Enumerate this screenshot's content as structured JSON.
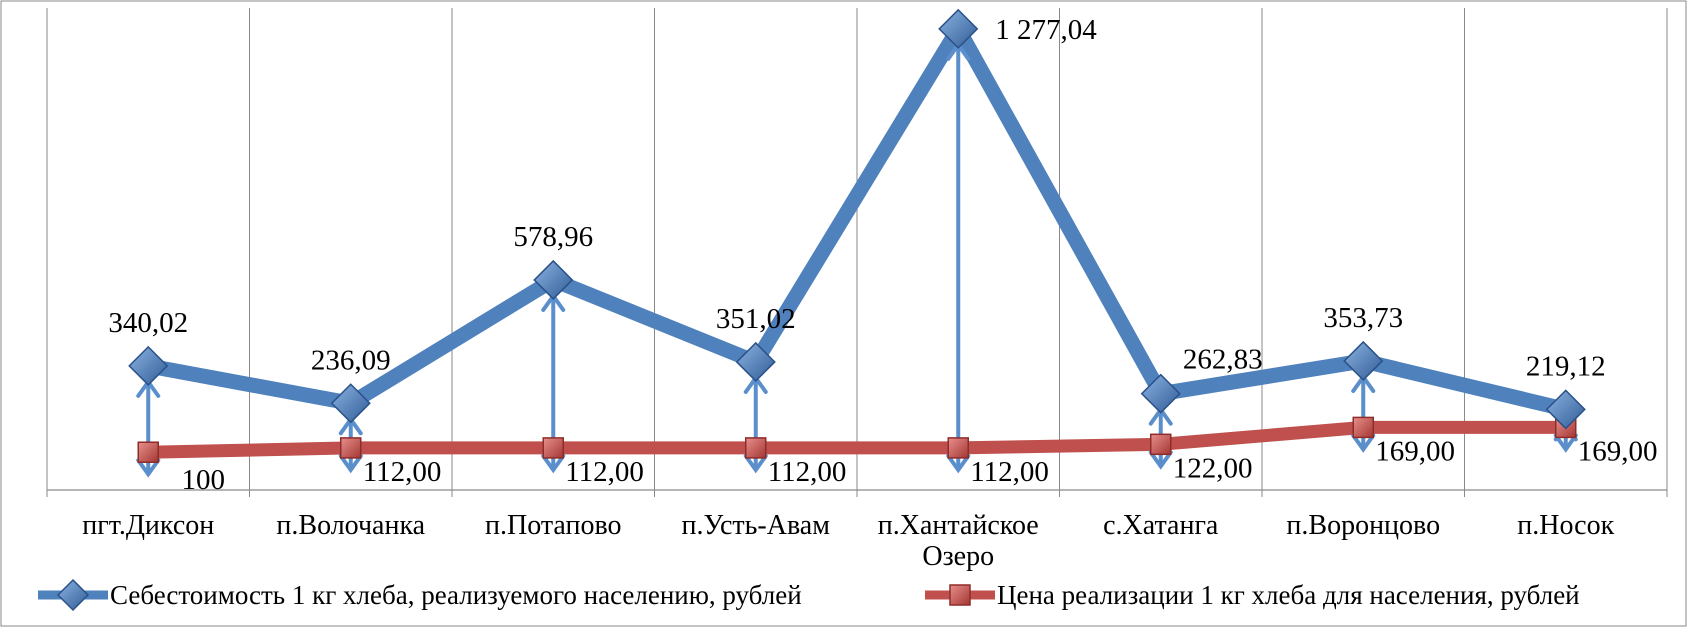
{
  "chart_data": {
    "type": "line",
    "categories": [
      [
        "пгт.Диксон"
      ],
      [
        "п.Волочанка"
      ],
      [
        "п.Потапово"
      ],
      [
        "п.Усть-Авам"
      ],
      [
        "п.Хантайское",
        "Озеро"
      ],
      [
        "с.Хатанга"
      ],
      [
        "п.Воронцово"
      ],
      [
        "п.Носок"
      ]
    ],
    "series": [
      {
        "name": "Себестоимость 1 кг хлеба, реализуемого населению, рублей",
        "values": [
          340.02,
          236.09,
          578.96,
          351.02,
          1277.04,
          262.83,
          353.73,
          219.12
        ],
        "labels": [
          "340,02",
          "236,09",
          "578,96",
          "351,02",
          "1 277,04",
          "262,83",
          "353,73",
          "219,12"
        ],
        "color": "#4F81BD",
        "marker": "diamond"
      },
      {
        "name": "Цена реализации 1 кг хлеба для населения, рублей",
        "values": [
          100,
          112,
          112,
          112,
          112,
          122,
          169,
          169
        ],
        "labels": [
          "100",
          "112,00",
          "112,00",
          "112,00",
          "112,00",
          "122,00",
          "169,00",
          "169,00"
        ],
        "color": "#C0504D",
        "marker": "square"
      }
    ],
    "ylim": [
      -5,
      1335
    ],
    "grid": "vertical",
    "legend": "bottom",
    "difference_arrows": true
  }
}
